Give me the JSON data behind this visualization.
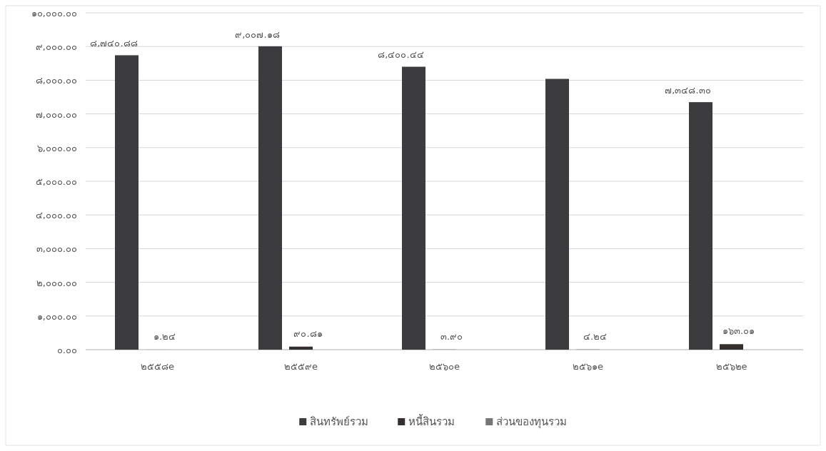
{
  "chart_data": {
    "type": "bar",
    "categories": [
      "๒๕๕๘e",
      "๒๕๕๙e",
      "๒๕๖๐e",
      "๒๕๖๑e",
      "๒๕๖๒e"
    ],
    "series": [
      {
        "name": "สินทรัพย์รวม",
        "color": "#3c3c3e",
        "values": [
          8740.88,
          9007.18,
          8400.44,
          8040,
          7348.3
        ],
        "value_labels": [
          "๘,๗๔๐.๘๘",
          "๙,๐๐๗.๑๘",
          "๘,๔๐๐.๔๔",
          null,
          "๗,๓๔๘.๓๐"
        ]
      },
      {
        "name": "หนี้สินรวม",
        "color": "#35302e",
        "values": [
          1.24,
          90.81,
          3.9,
          4.24,
          163.01
        ],
        "value_labels": [
          "๑.๒๔",
          "๙๐.๘๑",
          "๓.๙๐",
          "๔.๒๔",
          "๑๖๓.๐๑"
        ]
      },
      {
        "name": "ส่วนของทุนรวม",
        "color": "#767676",
        "values": [
          null,
          null,
          null,
          null,
          null
        ]
      }
    ],
    "ylim": [
      0,
      10000
    ],
    "yticks": [
      {
        "value": 0,
        "label": "๐.๐๐"
      },
      {
        "value": 1000,
        "label": "๑,๐๐๐.๐๐"
      },
      {
        "value": 2000,
        "label": "๒,๐๐๐.๐๐"
      },
      {
        "value": 3000,
        "label": "๓,๐๐๐.๐๐"
      },
      {
        "value": 4000,
        "label": "๔,๐๐๐.๐๐"
      },
      {
        "value": 5000,
        "label": "๕,๐๐๐.๐๐"
      },
      {
        "value": 6000,
        "label": "๖,๐๐๐.๐๐"
      },
      {
        "value": 7000,
        "label": "๗,๐๐๐.๐๐"
      },
      {
        "value": 8000,
        "label": "๘,๐๐๐.๐๐"
      },
      {
        "value": 9000,
        "label": "๙,๐๐๐.๐๐"
      },
      {
        "value": 10000,
        "label": "๑๐,๐๐๐.๐๐"
      }
    ],
    "grid": "y",
    "legend": "bottom"
  }
}
